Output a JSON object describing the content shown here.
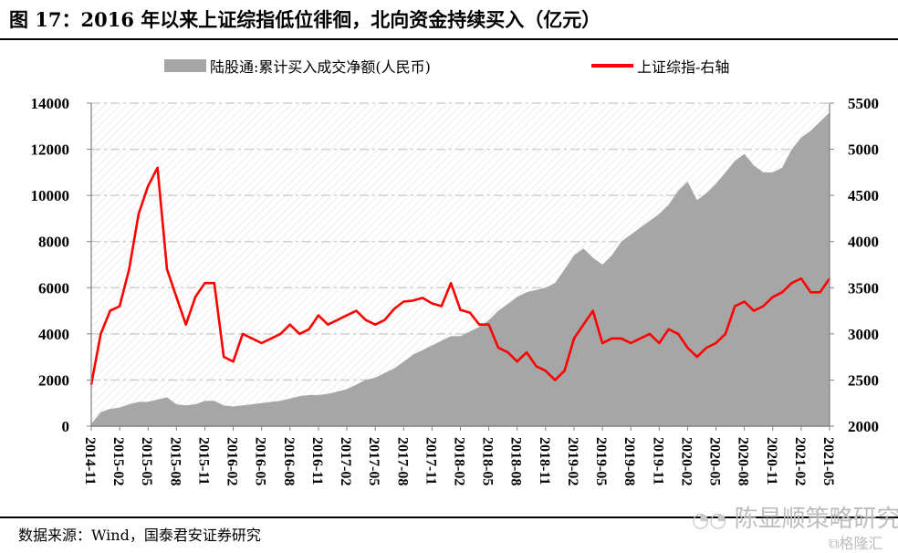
{
  "figure": {
    "title": "图 17：2016 年以来上证综指低位徘徊，北向资金持续买入（亿元）",
    "source": "数据来源：Wind，国泰君安证券研究",
    "watermark_text": "陈显顺策略研究",
    "watermark_logo": "格隆汇"
  },
  "colors": {
    "area": "#a6a6a6",
    "line": "#ff0000",
    "grid": "#d0d0d0",
    "axis": "#808080"
  },
  "chart_data": {
    "type": "area+line",
    "title": "图 17：2016 年以来上证综指低位徘徊，北向资金持续买入（亿元）",
    "legend_position": "top",
    "legend": [
      {
        "name": "陆股通:累计买入成交净额(人民币)",
        "kind": "area"
      },
      {
        "name": "上证综指-右轴",
        "kind": "line"
      }
    ],
    "x_ticks": [
      "2014-11",
      "2015-02",
      "2015-05",
      "2015-08",
      "2015-11",
      "2016-02",
      "2016-05",
      "2016-08",
      "2016-11",
      "2017-02",
      "2017-05",
      "2017-08",
      "2017-11",
      "2018-02",
      "2018-05",
      "2018-08",
      "2018-11",
      "2019-02",
      "2019-05",
      "2019-08",
      "2019-11",
      "2020-02",
      "2020-05",
      "2020-08",
      "2020-11",
      "2021-02",
      "2021-05"
    ],
    "left_axis": {
      "ylim": [
        0,
        14000
      ],
      "ticks": [
        "0",
        "2000",
        "4000",
        "6000",
        "8000",
        "10000",
        "12000",
        "14000"
      ]
    },
    "right_axis": {
      "ylim": [
        2000,
        5500
      ],
      "ticks": [
        "2000",
        "2500",
        "3000",
        "3500",
        "4000",
        "4500",
        "5000",
        "5500"
      ]
    },
    "grid": true,
    "x": [
      "2014-11",
      "2014-12",
      "2015-01",
      "2015-02",
      "2015-03",
      "2015-04",
      "2015-05",
      "2015-06",
      "2015-07",
      "2015-08",
      "2015-09",
      "2015-10",
      "2015-11",
      "2015-12",
      "2016-01",
      "2016-02",
      "2016-03",
      "2016-04",
      "2016-05",
      "2016-06",
      "2016-07",
      "2016-08",
      "2016-09",
      "2016-10",
      "2016-11",
      "2016-12",
      "2017-01",
      "2017-02",
      "2017-03",
      "2017-04",
      "2017-05",
      "2017-06",
      "2017-07",
      "2017-08",
      "2017-09",
      "2017-10",
      "2017-11",
      "2017-12",
      "2018-01",
      "2018-02",
      "2018-03",
      "2018-04",
      "2018-05",
      "2018-06",
      "2018-07",
      "2018-08",
      "2018-09",
      "2018-10",
      "2018-11",
      "2018-12",
      "2019-01",
      "2019-02",
      "2019-03",
      "2019-04",
      "2019-05",
      "2019-06",
      "2019-07",
      "2019-08",
      "2019-09",
      "2019-10",
      "2019-11",
      "2019-12",
      "2020-01",
      "2020-02",
      "2020-03",
      "2020-04",
      "2020-05",
      "2020-06",
      "2020-07",
      "2020-08",
      "2020-09",
      "2020-10",
      "2020-11",
      "2020-12",
      "2021-01",
      "2021-02",
      "2021-03",
      "2021-04",
      "2021-05"
    ],
    "series": [
      {
        "name": "陆股通:累计买入成交净额(人民币)",
        "axis": "left",
        "values": [
          100,
          600,
          750,
          800,
          950,
          1050,
          1050,
          1150,
          1250,
          950,
          900,
          950,
          1100,
          1100,
          900,
          850,
          900,
          950,
          1000,
          1050,
          1100,
          1200,
          1300,
          1350,
          1350,
          1400,
          1500,
          1600,
          1800,
          2000,
          2100,
          2300,
          2500,
          2800,
          3100,
          3300,
          3500,
          3700,
          3900,
          3900,
          4100,
          4300,
          4600,
          5000,
          5300,
          5600,
          5800,
          5900,
          6000,
          6200,
          6800,
          7400,
          7700,
          7300,
          7000,
          7400,
          8000,
          8300,
          8600,
          8900,
          9200,
          9600,
          10200,
          10600,
          9800,
          10100,
          10500,
          11000,
          11500,
          11800,
          11300,
          11000,
          11000,
          11200,
          12000,
          12500,
          12800,
          13200,
          13600
        ]
      },
      {
        "name": "上证综指-右轴",
        "axis": "right",
        "values": [
          2450,
          3000,
          3250,
          3300,
          3700,
          4300,
          4600,
          4800,
          3700,
          3400,
          3100,
          3400,
          3550,
          3550,
          2750,
          2700,
          3000,
          2950,
          2900,
          2950,
          3000,
          3100,
          3000,
          3050,
          3200,
          3100,
          3150,
          3200,
          3250,
          3150,
          3100,
          3150,
          3270,
          3350,
          3360,
          3390,
          3330,
          3300,
          3550,
          3260,
          3230,
          3100,
          3100,
          2850,
          2800,
          2700,
          2800,
          2650,
          2600,
          2500,
          2600,
          2950,
          3100,
          3250,
          2900,
          2950,
          2950,
          2900,
          2950,
          3000,
          2900,
          3050,
          3000,
          2850,
          2750,
          2850,
          2900,
          3000,
          3300,
          3350,
          3250,
          3300,
          3400,
          3450,
          3550,
          3600,
          3450,
          3450,
          3600
        ]
      }
    ]
  }
}
